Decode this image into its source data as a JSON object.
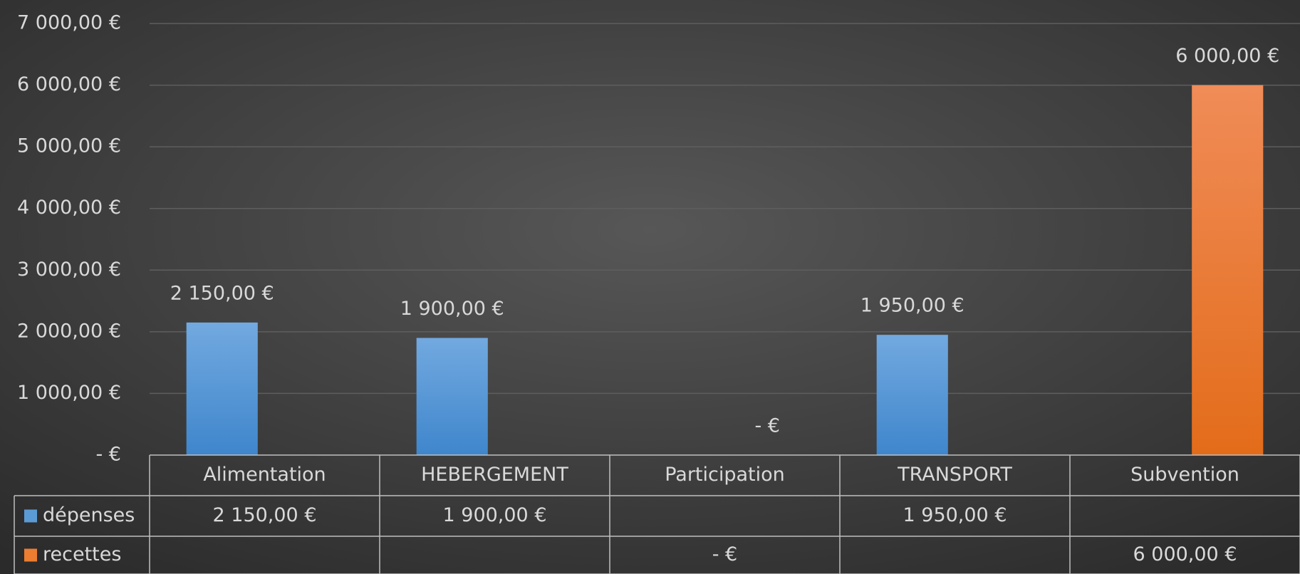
{
  "chart_data": {
    "type": "bar",
    "categories": [
      "Alimentation",
      "HEBERGEMENT",
      "Participation",
      "TRANSPORT",
      "Subvention"
    ],
    "series": [
      {
        "name": "dépenses",
        "color": "#5b9bd5",
        "values": [
          2150,
          1900,
          null,
          1950,
          null
        ],
        "value_labels": [
          "2 150,00 €",
          "1 900,00 €",
          null,
          "1 950,00 €",
          null
        ]
      },
      {
        "name": "recettes",
        "color": "#ed7d31",
        "values": [
          null,
          null,
          0,
          null,
          6000
        ],
        "value_labels": [
          null,
          null,
          "-  €",
          null,
          "6 000,00 €"
        ]
      }
    ],
    "ylim": [
      0,
      7000
    ],
    "yticks": [
      {
        "value": 0,
        "label": "-  €"
      },
      {
        "value": 1000,
        "label": "1 000,00 €"
      },
      {
        "value": 2000,
        "label": "2 000,00 €"
      },
      {
        "value": 3000,
        "label": "3 000,00 €"
      },
      {
        "value": 4000,
        "label": "4 000,00 €"
      },
      {
        "value": 5000,
        "label": "5 000,00 €"
      },
      {
        "value": 6000,
        "label": "6 000,00 €"
      },
      {
        "value": 7000,
        "label": "7 000,00 €"
      }
    ],
    "grid": true,
    "data_table": true
  }
}
